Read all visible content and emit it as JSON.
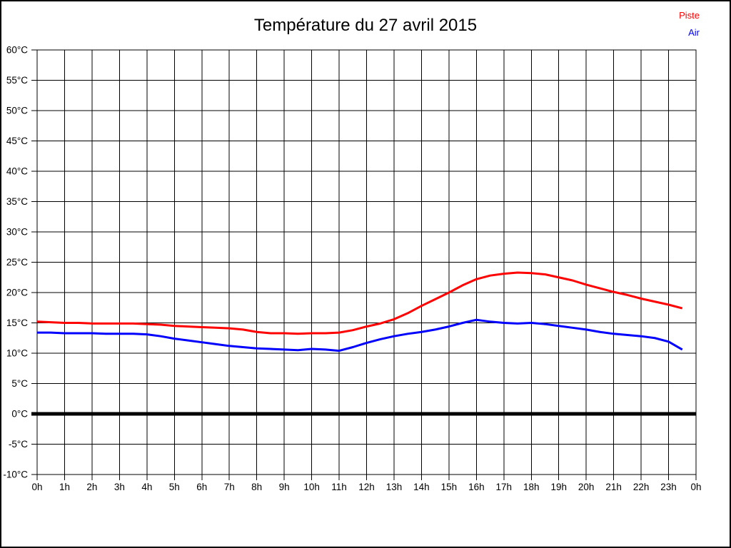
{
  "title": "Température du 27 avril 2015",
  "chart_data": {
    "type": "line",
    "title": "Température du 27 avril 2015",
    "xlabel": "",
    "ylabel": "",
    "xlim": [
      0,
      24
    ],
    "ylim": [
      -10,
      60
    ],
    "grid": true,
    "legend_position": "top-right",
    "x_ticks": [
      0,
      1,
      2,
      3,
      4,
      5,
      6,
      7,
      8,
      9,
      10,
      11,
      12,
      13,
      14,
      15,
      16,
      17,
      18,
      19,
      20,
      21,
      22,
      23,
      24
    ],
    "x_tick_labels": [
      "0h",
      "1h",
      "2h",
      "3h",
      "4h",
      "5h",
      "6h",
      "7h",
      "8h",
      "9h",
      "10h",
      "11h",
      "12h",
      "13h",
      "14h",
      "15h",
      "16h",
      "17h",
      "18h",
      "19h",
      "20h",
      "21h",
      "22h",
      "23h",
      "0h"
    ],
    "y_ticks": [
      60,
      55,
      50,
      45,
      40,
      35,
      30,
      25,
      20,
      15,
      10,
      5,
      0,
      -5,
      -10
    ],
    "y_tick_suffix": "°C",
    "zero_line_value": 0,
    "series": [
      {
        "name": "Piste",
        "color": "#ff0000",
        "x": [
          0,
          0.5,
          1,
          1.5,
          2,
          2.5,
          3,
          3.5,
          4,
          4.5,
          5,
          5.5,
          6,
          6.5,
          7,
          7.5,
          8,
          8.5,
          9,
          9.5,
          10,
          10.5,
          11,
          11.5,
          12,
          12.5,
          13,
          13.5,
          14,
          14.5,
          15,
          15.5,
          16,
          16.5,
          17,
          17.5,
          18,
          18.5,
          19,
          19.5,
          20,
          20.5,
          21,
          21.5,
          22,
          22.5,
          23,
          23.5
        ],
        "values": [
          15.2,
          15.1,
          15.0,
          15.0,
          14.9,
          14.9,
          14.9,
          14.9,
          14.8,
          14.7,
          14.5,
          14.4,
          14.3,
          14.2,
          14.1,
          13.9,
          13.5,
          13.3,
          13.3,
          13.2,
          13.3,
          13.3,
          13.4,
          13.8,
          14.4,
          14.9,
          15.6,
          16.6,
          17.8,
          18.9,
          20.0,
          21.2,
          22.2,
          22.8,
          23.1,
          23.3,
          23.2,
          23.0,
          22.5,
          22.0,
          21.3,
          20.7,
          20.1,
          19.6,
          19.0,
          18.5,
          18.0,
          17.4
        ]
      },
      {
        "name": "Air",
        "color": "#0000ff",
        "x": [
          0,
          0.5,
          1,
          1.5,
          2,
          2.5,
          3,
          3.5,
          4,
          4.5,
          5,
          5.5,
          6,
          6.5,
          7,
          7.5,
          8,
          8.5,
          9,
          9.5,
          10,
          10.5,
          11,
          11.5,
          12,
          12.5,
          13,
          13.5,
          14,
          14.5,
          15,
          15.5,
          16,
          16.5,
          17,
          17.5,
          18,
          18.5,
          19,
          19.5,
          20,
          20.5,
          21,
          21.5,
          22,
          22.5,
          23,
          23.5
        ],
        "values": [
          13.4,
          13.4,
          13.3,
          13.3,
          13.3,
          13.2,
          13.2,
          13.2,
          13.1,
          12.8,
          12.4,
          12.1,
          11.8,
          11.5,
          11.2,
          11.0,
          10.8,
          10.7,
          10.6,
          10.5,
          10.7,
          10.6,
          10.4,
          11.0,
          11.7,
          12.3,
          12.8,
          13.2,
          13.5,
          13.9,
          14.4,
          15.0,
          15.5,
          15.2,
          15.0,
          14.9,
          15.0,
          14.8,
          14.5,
          14.2,
          13.9,
          13.5,
          13.2,
          13.0,
          12.8,
          12.5,
          11.9,
          10.6
        ]
      }
    ]
  }
}
